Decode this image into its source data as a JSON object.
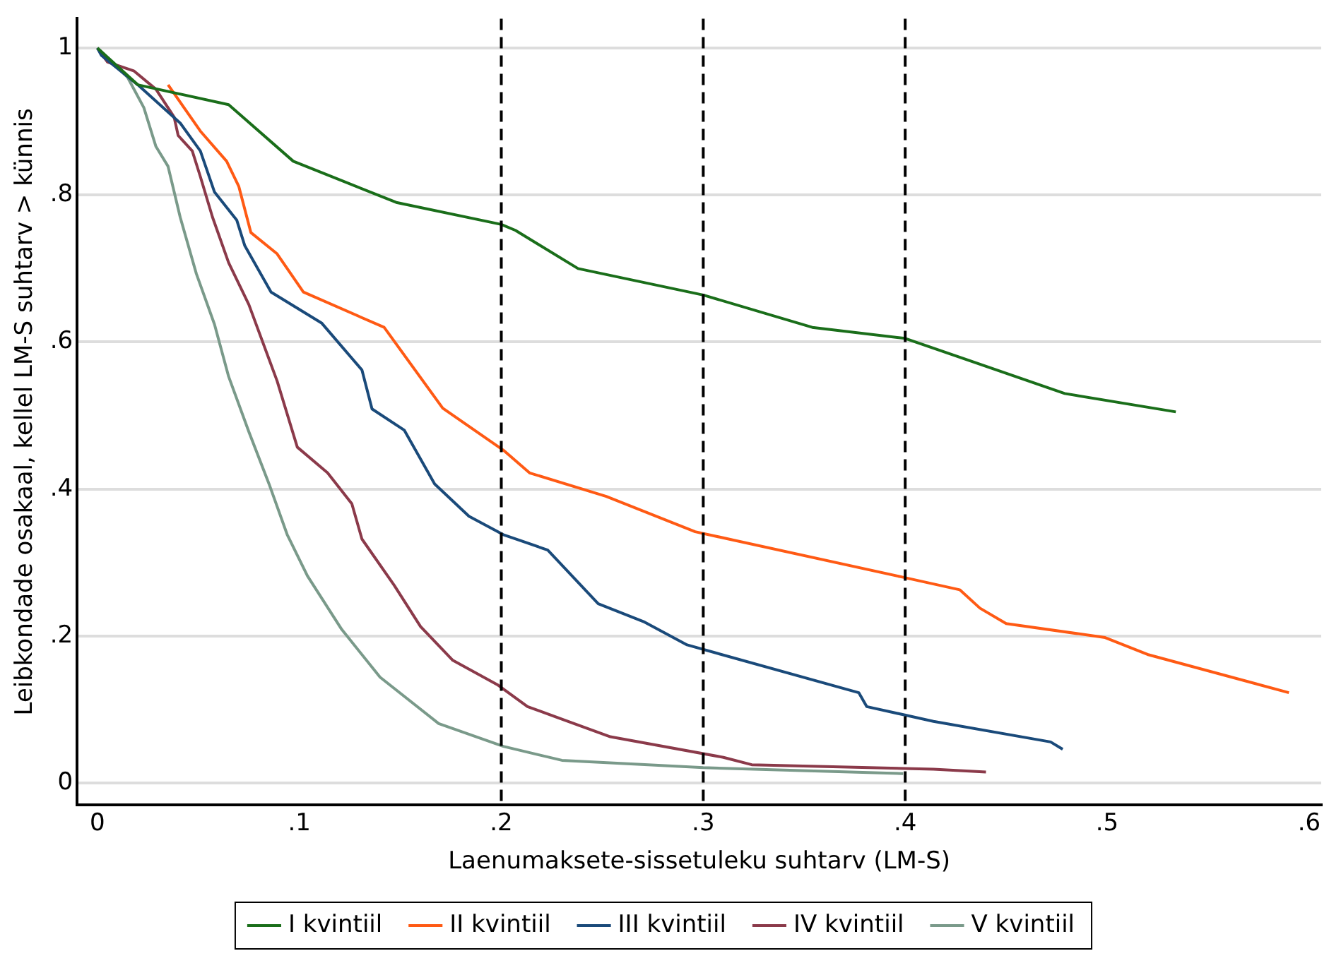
{
  "chart_data": {
    "type": "line",
    "xlabel": "Laenumaksete-sissetuleku suhtarv (LM-S)",
    "ylabel": "Leibkondade osakaal, kellel LM-S suhtarv > künnis",
    "xlim": [
      -0.01,
      0.606
    ],
    "ylim": [
      -0.03,
      1.04
    ],
    "xticks": [
      0,
      {
        "value": 0.1,
        "label": ".1"
      },
      {
        "value": 0.2,
        "label": ".2"
      },
      {
        "value": 0.3,
        "label": ".3"
      },
      {
        "value": 0.4,
        "label": ".4"
      },
      {
        "value": 0.5,
        "label": ".5"
      },
      {
        "value": 0.6,
        "label": ".6"
      }
    ],
    "yticks": [
      0,
      {
        "value": 0.2,
        "label": ".2"
      },
      {
        "value": 0.4,
        "label": ".4"
      },
      {
        "value": 0.6,
        "label": ".6"
      },
      {
        "value": 0.8,
        "label": ".8"
      },
      1
    ],
    "grid": "y",
    "legend": "bottom",
    "marker": "none",
    "line_style": "solid",
    "ref_lines": [
      {
        "axis": "x",
        "value": 0.2,
        "color": "#000000",
        "line_style": "dashed"
      },
      {
        "axis": "x",
        "value": 0.3,
        "color": "#000000",
        "line_style": "dashed"
      },
      {
        "axis": "x",
        "value": 0.4,
        "color": "#000000",
        "line_style": "dashed"
      }
    ],
    "series": [
      {
        "name": "I kvintiil",
        "color": "#1a6e1a",
        "x": [
          0,
          0.02,
          0.065,
          0.097,
          0.148,
          0.2,
          0.207,
          0.238,
          0.3,
          0.354,
          0.4,
          0.479,
          0.534
        ],
        "values": [
          1,
          0.95,
          0.923,
          0.846,
          0.79,
          0.76,
          0.752,
          0.7,
          0.664,
          0.62,
          0.605,
          0.53,
          0.505
        ]
      },
      {
        "name": "II kvintiil",
        "color": "#ff5a14",
        "x": [
          0.035,
          0.051,
          0.064,
          0.07,
          0.076,
          0.089,
          0.102,
          0.142,
          0.171,
          0.201,
          0.214,
          0.252,
          0.296,
          0.399,
          0.427,
          0.437,
          0.45,
          0.499,
          0.52,
          0.59
        ],
        "values": [
          0.95,
          0.887,
          0.846,
          0.812,
          0.749,
          0.72,
          0.668,
          0.62,
          0.51,
          0.453,
          0.422,
          0.39,
          0.342,
          0.28,
          0.263,
          0.238,
          0.217,
          0.198,
          0.175,
          0.123
        ]
      },
      {
        "name": "III kvintiil",
        "color": "#1a4a7a",
        "x": [
          0,
          0.002,
          0.02,
          0.041,
          0.051,
          0.058,
          0.069,
          0.073,
          0.086,
          0.111,
          0.131,
          0.136,
          0.152,
          0.167,
          0.184,
          0.201,
          0.223,
          0.248,
          0.271,
          0.292,
          0.377,
          0.381,
          0.414,
          0.472,
          0.478
        ],
        "values": [
          1,
          0.99,
          0.95,
          0.898,
          0.86,
          0.804,
          0.766,
          0.731,
          0.668,
          0.626,
          0.562,
          0.509,
          0.48,
          0.407,
          0.363,
          0.338,
          0.317,
          0.244,
          0.219,
          0.188,
          0.123,
          0.104,
          0.084,
          0.056,
          0.046
        ]
      },
      {
        "name": "IV kvintiil",
        "color": "#8b3a4a",
        "x": [
          0,
          0.005,
          0.018,
          0.029,
          0.038,
          0.04,
          0.047,
          0.051,
          0.057,
          0.065,
          0.075,
          0.089,
          0.099,
          0.114,
          0.126,
          0.131,
          0.147,
          0.16,
          0.176,
          0.198,
          0.213,
          0.254,
          0.31,
          0.324,
          0.414,
          0.44
        ],
        "values": [
          1,
          0.981,
          0.969,
          0.944,
          0.906,
          0.881,
          0.86,
          0.825,
          0.77,
          0.708,
          0.651,
          0.547,
          0.457,
          0.422,
          0.38,
          0.332,
          0.269,
          0.213,
          0.167,
          0.134,
          0.104,
          0.063,
          0.035,
          0.025,
          0.019,
          0.015
        ]
      },
      {
        "name": "V kvintiil",
        "color": "#7a9a8a",
        "x": [
          0,
          0.011,
          0.015,
          0.023,
          0.029,
          0.035,
          0.041,
          0.049,
          0.058,
          0.065,
          0.075,
          0.085,
          0.094,
          0.104,
          0.121,
          0.14,
          0.169,
          0.201,
          0.23,
          0.3,
          0.399
        ],
        "values": [
          1,
          0.971,
          0.96,
          0.919,
          0.866,
          0.839,
          0.77,
          0.693,
          0.624,
          0.553,
          0.478,
          0.407,
          0.338,
          0.282,
          0.209,
          0.144,
          0.081,
          0.05,
          0.031,
          0.021,
          0.013
        ]
      }
    ]
  }
}
